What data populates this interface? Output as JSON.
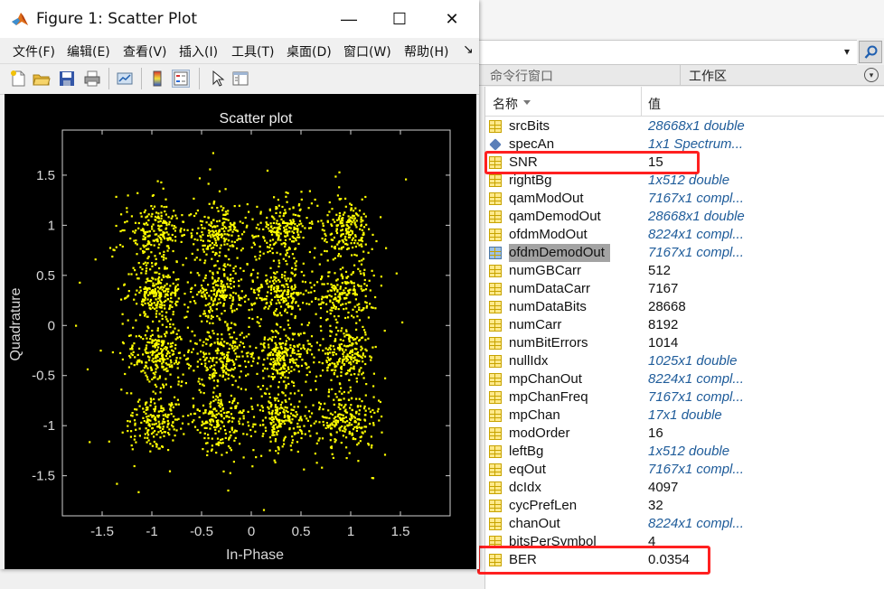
{
  "figure": {
    "title": "Figure 1: Scatter Plot",
    "menus": [
      "文件(F)",
      "编辑(E)",
      "查看(V)",
      "插入(I)",
      "工具(T)",
      "桌面(D)",
      "窗口(W)",
      "帮助(H)"
    ],
    "menu_overflow": "↘",
    "window_controls": {
      "minimize": "—",
      "maximize": "☐",
      "close": "✕"
    },
    "toolbar_icons": [
      "new-figure-icon",
      "open-file-icon",
      "save-icon",
      "print-icon",
      "link-plot-icon",
      "colorbar-icon",
      "legend-icon",
      "pointer-icon",
      "property-inspector-icon"
    ]
  },
  "chart_data": {
    "type": "scatter",
    "title": "Scatter plot",
    "xlabel": "In-Phase",
    "ylabel": "Quadrature",
    "xlim": [
      -1.9,
      2.0
    ],
    "ylim": [
      -1.9,
      1.95
    ],
    "xticks": [
      -1.5,
      -1,
      -0.5,
      0,
      0.5,
      1,
      1.5
    ],
    "yticks": [
      -1.5,
      -1,
      -0.5,
      0,
      0.5,
      1,
      1.5
    ],
    "xtick_labels": [
      "-1.5",
      "-1",
      "-0.5",
      "0",
      "0.5",
      "1",
      "1.5"
    ],
    "ytick_labels": [
      "-1.5",
      "-1",
      "-0.5",
      "0",
      "0.5",
      "1",
      "1.5"
    ],
    "background": "#000000",
    "point_color": "#ffff00",
    "grid": false,
    "constellation": "16-QAM",
    "cluster_centers_x": [
      -0.949,
      -0.316,
      0.316,
      0.949
    ],
    "cluster_centers_y": [
      -0.949,
      -0.316,
      0.316,
      0.949
    ],
    "noise_std": 0.14,
    "n_points": 7167
  },
  "address_bar": {
    "dropdown": "▾"
  },
  "panels": {
    "command_window": "命令行窗口",
    "workspace": "工作区",
    "menu_icon": "▾"
  },
  "workspace": {
    "columns": {
      "name": "名称",
      "value": "值"
    },
    "vars": [
      {
        "name": "srcBits",
        "value": "28668x1 double",
        "italic": true,
        "icon": "matrix"
      },
      {
        "name": "specAn",
        "value": "1x1 Spectrum...",
        "italic": true,
        "icon": "object"
      },
      {
        "name": "SNR",
        "value": "15",
        "italic": false,
        "icon": "matrix"
      },
      {
        "name": "rightBg",
        "value": "1x512 double",
        "italic": true,
        "icon": "matrix"
      },
      {
        "name": "qamModOut",
        "value": "7167x1 compl...",
        "italic": true,
        "icon": "matrix"
      },
      {
        "name": "qamDemodOut",
        "value": "28668x1 double",
        "italic": true,
        "icon": "matrix"
      },
      {
        "name": "ofdmModOut",
        "value": "8224x1 compl...",
        "italic": true,
        "icon": "matrix"
      },
      {
        "name": "ofdmDemodOut",
        "value": "7167x1 compl...",
        "italic": true,
        "icon": "selected"
      },
      {
        "name": "numGBCarr",
        "value": "512",
        "italic": false,
        "icon": "matrix"
      },
      {
        "name": "numDataCarr",
        "value": "7167",
        "italic": false,
        "icon": "matrix"
      },
      {
        "name": "numDataBits",
        "value": "28668",
        "italic": false,
        "icon": "matrix"
      },
      {
        "name": "numCarr",
        "value": "8192",
        "italic": false,
        "icon": "matrix"
      },
      {
        "name": "numBitErrors",
        "value": "1014",
        "italic": false,
        "icon": "matrix"
      },
      {
        "name": "nullIdx",
        "value": "1025x1 double",
        "italic": true,
        "icon": "matrix"
      },
      {
        "name": "mpChanOut",
        "value": "8224x1 compl...",
        "italic": true,
        "icon": "matrix"
      },
      {
        "name": "mpChanFreq",
        "value": "7167x1 compl...",
        "italic": true,
        "icon": "matrix"
      },
      {
        "name": "mpChan",
        "value": "17x1 double",
        "italic": true,
        "icon": "matrix"
      },
      {
        "name": "modOrder",
        "value": "16",
        "italic": false,
        "icon": "matrix"
      },
      {
        "name": "leftBg",
        "value": "1x512 double",
        "italic": true,
        "icon": "matrix"
      },
      {
        "name": "eqOut",
        "value": "7167x1 compl...",
        "italic": true,
        "icon": "matrix"
      },
      {
        "name": "dcIdx",
        "value": "4097",
        "italic": false,
        "icon": "matrix"
      },
      {
        "name": "cycPrefLen",
        "value": "32",
        "italic": false,
        "icon": "matrix"
      },
      {
        "name": "chanOut",
        "value": "8224x1 compl...",
        "italic": true,
        "icon": "matrix"
      },
      {
        "name": "bitsPerSymbol",
        "value": "4",
        "italic": false,
        "icon": "matrix"
      },
      {
        "name": "BER",
        "value": "0.0354",
        "italic": false,
        "icon": "matrix"
      }
    ],
    "highlighted": [
      "SNR",
      "BER"
    ],
    "selected": "ofdmDemodOut",
    "highlight_color": "#ff2020"
  }
}
